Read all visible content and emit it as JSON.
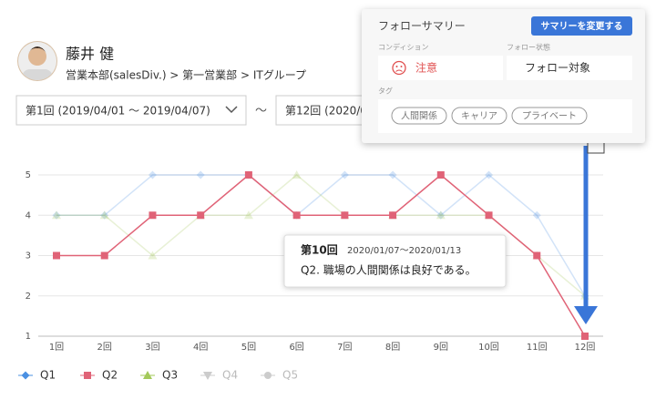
{
  "profile": {
    "name": "藤井 健",
    "department": "営業本部(salesDiv.) > 第一営業部 > ITグループ"
  },
  "period": {
    "start": "第1回 (2019/04/01 〜 2019/04/07)",
    "separator": "〜",
    "end": "第12回 (2020/0"
  },
  "summary": {
    "title": "フォローサマリー",
    "button": "サマリーを変更する",
    "condition_label": "コンディション",
    "condition": "注意",
    "status_label": "フォロー状態",
    "status": "フォロー対象",
    "tags_label": "タグ",
    "tags": [
      "人間関係",
      "キャリア",
      "プライベート"
    ]
  },
  "chart_data": {
    "type": "line",
    "categories": [
      "1回",
      "2回",
      "3回",
      "4回",
      "5回",
      "6回",
      "7回",
      "8回",
      "9回",
      "10回",
      "11回",
      "12回"
    ],
    "ylim": [
      1,
      5
    ],
    "yticks": [
      1,
      2,
      3,
      4,
      5
    ],
    "grid": true,
    "series": [
      {
        "name": "Q1",
        "color": "#4a90e2",
        "marker": "diamond",
        "values": [
          4,
          4,
          5,
          5,
          5,
          4,
          5,
          5,
          4,
          5,
          4,
          2
        ]
      },
      {
        "name": "Q2",
        "color": "#e06377",
        "marker": "square",
        "highlighted": true,
        "values": [
          3,
          3,
          4,
          4,
          5,
          4,
          4,
          4,
          5,
          4,
          3,
          1
        ]
      },
      {
        "name": "Q3",
        "color": "#a3c95a",
        "marker": "triangle",
        "values": [
          4,
          4,
          3,
          4,
          4,
          5,
          4,
          4,
          4,
          4,
          3,
          2
        ]
      },
      {
        "name": "Q4",
        "color": "#bbbbbb",
        "marker": "triangle-down",
        "hidden": true
      },
      {
        "name": "Q5",
        "color": "#cccccc",
        "marker": "circle",
        "hidden": true
      }
    ],
    "tooltip": {
      "title": "第10回",
      "dates": "2020/01/07〜2020/01/13",
      "text": "Q2. 職場の人間関係は良好である。"
    }
  }
}
